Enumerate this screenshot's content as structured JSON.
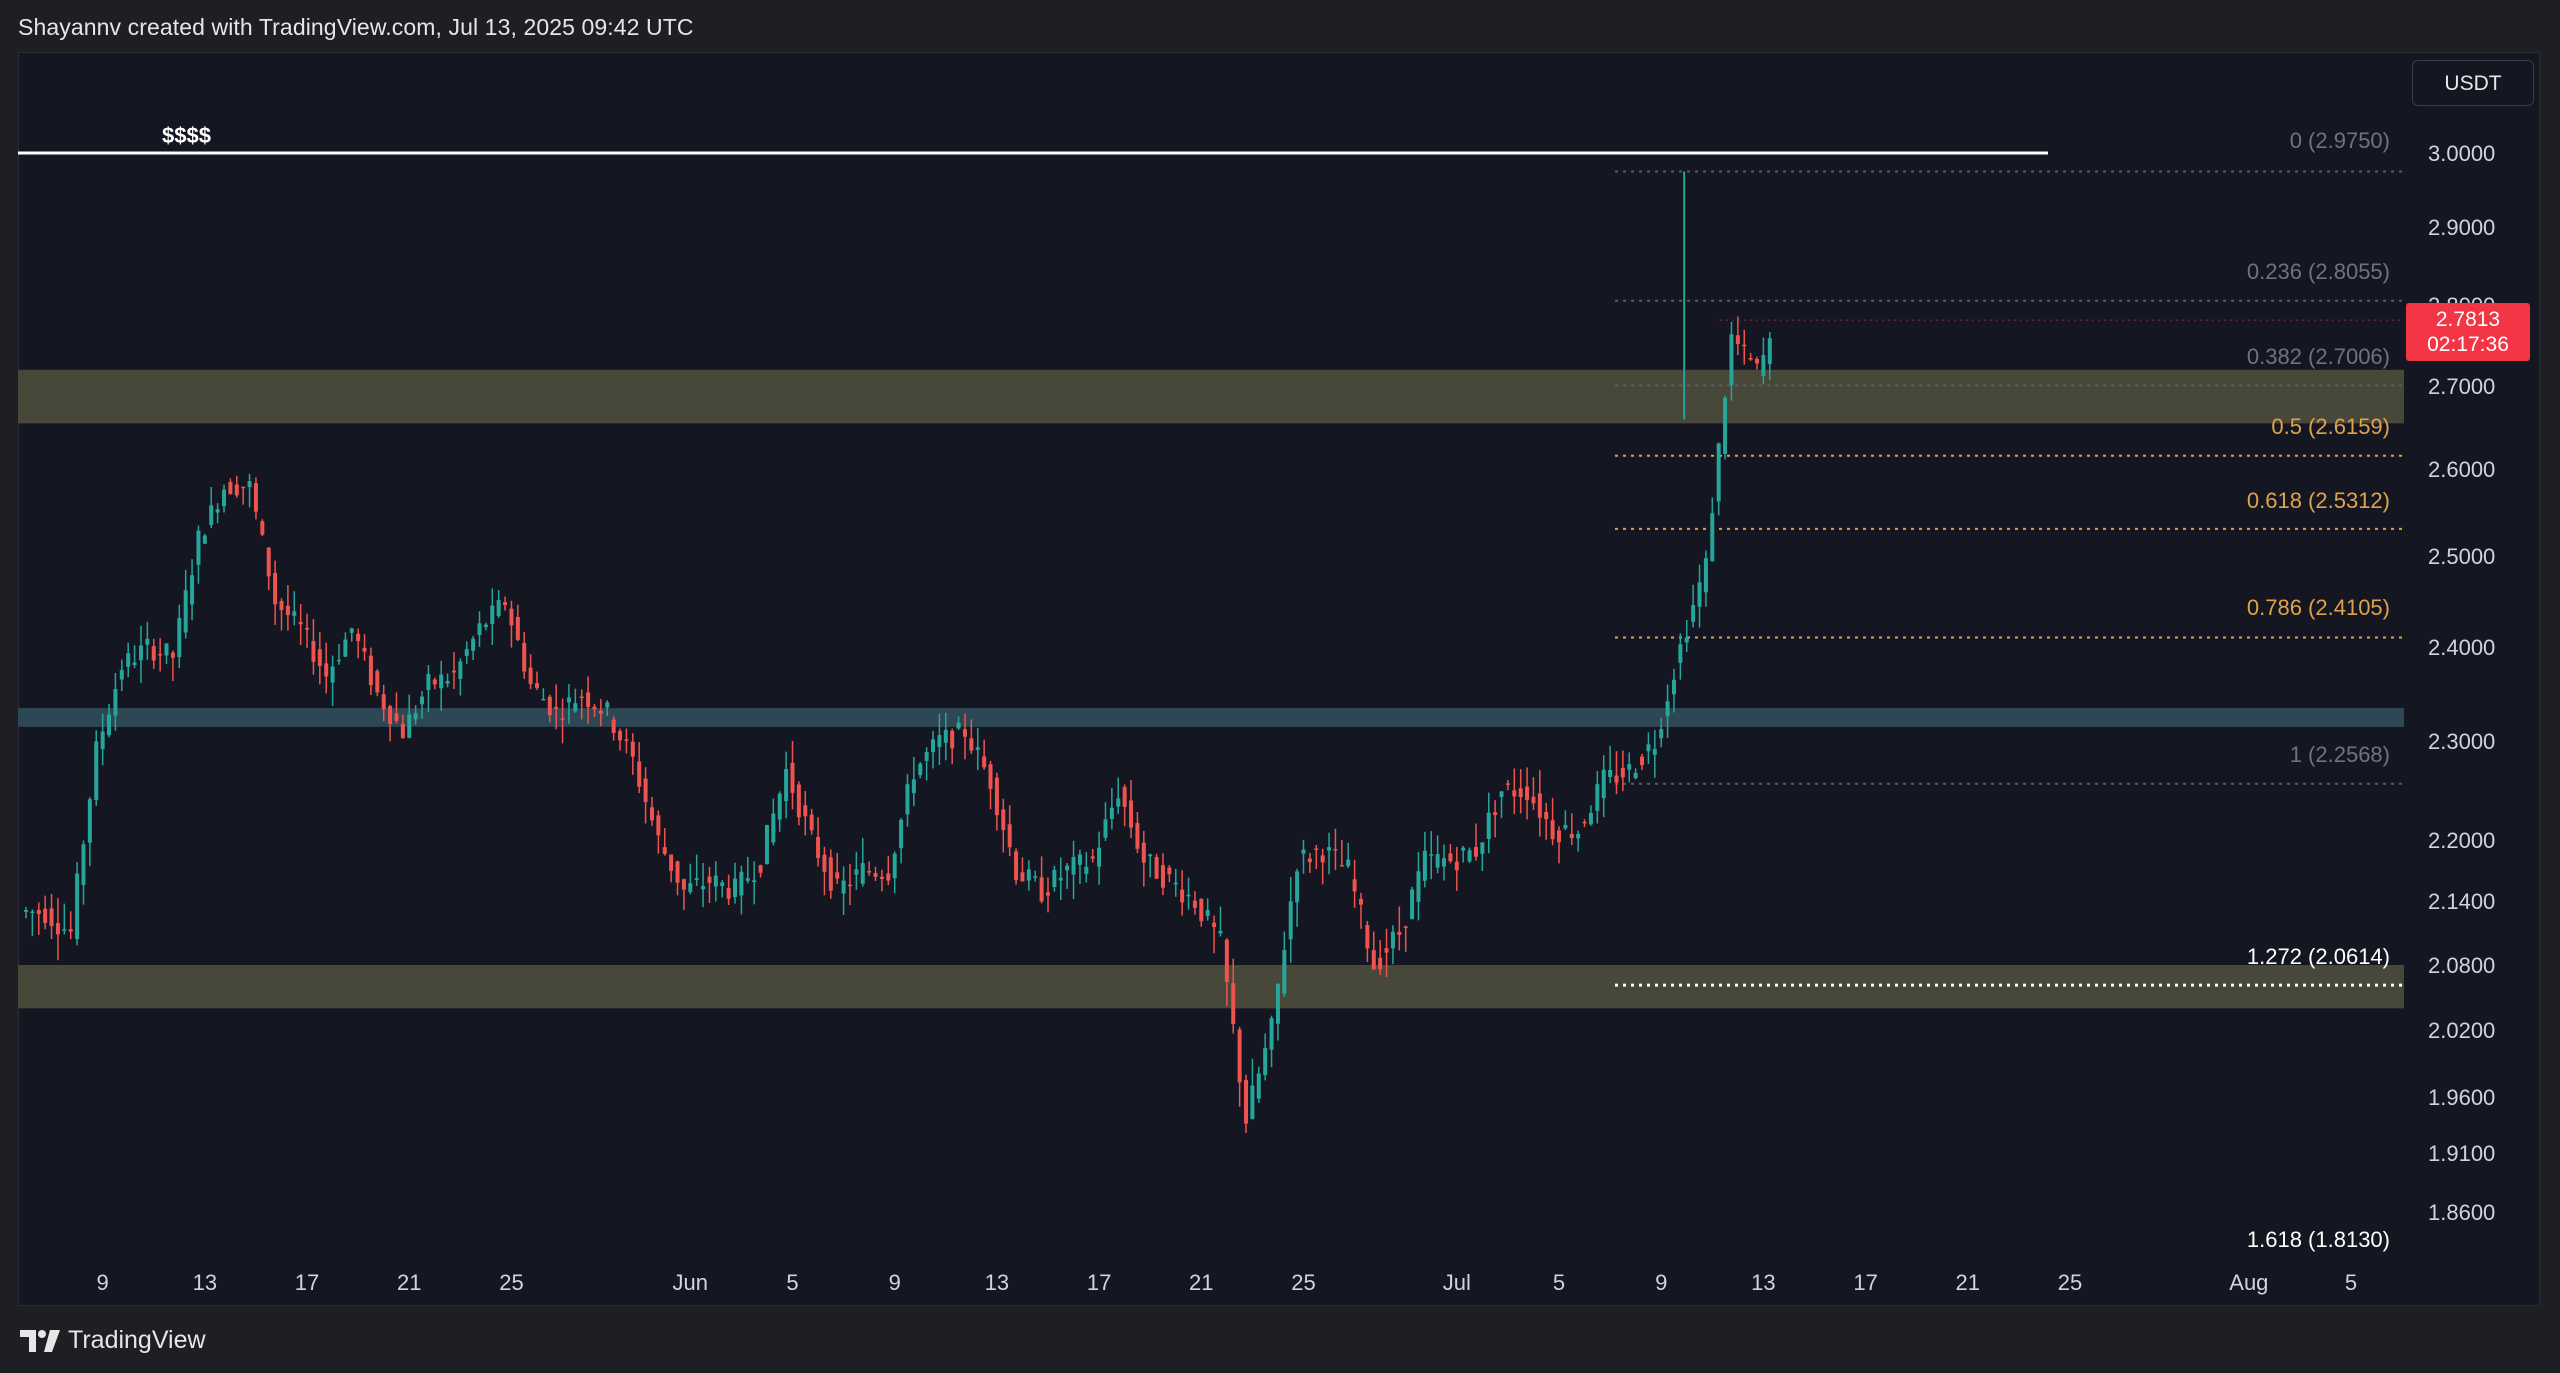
{
  "header": {
    "attribution": "Shayannv created with TradingView.com, Jul 13, 2025 09:42 UTC"
  },
  "footer": {
    "brand": "TradingView",
    "logo_icon": "tradingview-logo-icon"
  },
  "price_scale": {
    "currency": "USDT"
  },
  "last_price": {
    "value": "2.7813",
    "countdown": "02:17:36",
    "color": "#f23645"
  },
  "colors": {
    "up": "#26a69a",
    "down": "#ef5350",
    "background": "#141722",
    "zone_supply": "#4a4a3c",
    "zone_support": "#2e4a58",
    "fib_gray": "#5d6170",
    "fib_orange": "#e0a24a",
    "fib_white": "#ffffff"
  },
  "chart_data": {
    "type": "candlestick",
    "symbol_quote": "USDT",
    "y_ticks": [
      "3.0000",
      "2.9000",
      "2.8000",
      "2.7000",
      "2.6000",
      "2.5000",
      "2.4000",
      "2.3000",
      "2.2000",
      "2.1400",
      "2.0800",
      "2.0200",
      "1.9600",
      "1.9100",
      "1.8600"
    ],
    "x_ticks": [
      "9",
      "13",
      "17",
      "21",
      "25",
      "Jun",
      "5",
      "9",
      "13",
      "17",
      "21",
      "25",
      "Jul",
      "5",
      "9",
      "13",
      "17",
      "21",
      "25",
      "Aug",
      "5"
    ],
    "horizontal_line": {
      "label": "$$$$",
      "price": 3.0,
      "color": "#ffffff"
    },
    "zones": [
      {
        "from": 2.655,
        "to": 2.72,
        "color": "#4a4a3c"
      },
      {
        "from": 2.315,
        "to": 2.335,
        "color": "#2e4a58"
      },
      {
        "from": 2.04,
        "to": 2.08,
        "color": "#4a4a3c"
      }
    ],
    "fibonacci": [
      {
        "label": "0 (2.9750)",
        "ratio": 0,
        "price": 2.975,
        "color": "#5d6170"
      },
      {
        "label": "0.236 (2.8055)",
        "ratio": 0.236,
        "price": 2.8055,
        "color": "#5d6170"
      },
      {
        "label": "0.382 (2.7006)",
        "ratio": 0.382,
        "price": 2.7006,
        "color": "#5d6170"
      },
      {
        "label": "0.5 (2.6159)",
        "ratio": 0.5,
        "price": 2.6159,
        "color": "#e0a24a"
      },
      {
        "label": "0.618 (2.5312)",
        "ratio": 0.618,
        "price": 2.5312,
        "color": "#e0a24a"
      },
      {
        "label": "0.786 (2.4105)",
        "ratio": 0.786,
        "price": 2.4105,
        "color": "#e0a24a"
      },
      {
        "label": "1 (2.2568)",
        "ratio": 1,
        "price": 2.2568,
        "color": "#5d6170"
      },
      {
        "label": "1.272 (2.0614)",
        "ratio": 1.272,
        "price": 2.0614,
        "color": "#ffffff"
      },
      {
        "label": "1.618 (1.8130)",
        "ratio": 1.618,
        "price": 1.813,
        "color": "#ffffff"
      }
    ],
    "candle_path": [
      {
        "date": "May 6",
        "close": 2.13
      },
      {
        "date": "May 7",
        "close": 2.11
      },
      {
        "date": "May 8",
        "close": 2.29
      },
      {
        "date": "May 9",
        "close": 2.38
      },
      {
        "date": "May 10",
        "close": 2.4
      },
      {
        "date": "May 11",
        "close": 2.39
      },
      {
        "date": "May 12",
        "close": 2.52
      },
      {
        "date": "May 13",
        "close": 2.58
      },
      {
        "date": "May 14",
        "close": 2.58
      },
      {
        "date": "May 15",
        "close": 2.45
      },
      {
        "date": "May 16",
        "close": 2.42
      },
      {
        "date": "May 17",
        "close": 2.37
      },
      {
        "date": "May 18",
        "close": 2.42
      },
      {
        "date": "May 19",
        "close": 2.35
      },
      {
        "date": "May 20",
        "close": 2.31
      },
      {
        "date": "May 21",
        "close": 2.36
      },
      {
        "date": "May 22",
        "close": 2.37
      },
      {
        "date": "May 23",
        "close": 2.42
      },
      {
        "date": "May 24",
        "close": 2.45
      },
      {
        "date": "May 25",
        "close": 2.36
      },
      {
        "date": "May 26",
        "close": 2.33
      },
      {
        "date": "May 27",
        "close": 2.35
      },
      {
        "date": "May 28",
        "close": 2.33
      },
      {
        "date": "May 29",
        "close": 2.28
      },
      {
        "date": "May 30",
        "close": 2.2
      },
      {
        "date": "May 31",
        "close": 2.15
      },
      {
        "date": "Jun 1",
        "close": 2.16
      },
      {
        "date": "Jun 2",
        "close": 2.15
      },
      {
        "date": "Jun 3",
        "close": 2.18
      },
      {
        "date": "Jun 4",
        "close": 2.27
      },
      {
        "date": "Jun 5",
        "close": 2.2
      },
      {
        "date": "Jun 6",
        "close": 2.15
      },
      {
        "date": "Jun 7",
        "close": 2.17
      },
      {
        "date": "Jun 8",
        "close": 2.17
      },
      {
        "date": "Jun 9",
        "close": 2.27
      },
      {
        "date": "Jun 10",
        "close": 2.3
      },
      {
        "date": "Jun 11",
        "close": 2.31
      },
      {
        "date": "Jun 12",
        "close": 2.26
      },
      {
        "date": "Jun 13",
        "close": 2.17
      },
      {
        "date": "Jun 14",
        "close": 2.15
      },
      {
        "date": "Jun 15",
        "close": 2.17
      },
      {
        "date": "Jun 16",
        "close": 2.18
      },
      {
        "date": "Jun 17",
        "close": 2.25
      },
      {
        "date": "Jun 18",
        "close": 2.18
      },
      {
        "date": "Jun 19",
        "close": 2.16
      },
      {
        "date": "Jun 20",
        "close": 2.14
      },
      {
        "date": "Jun 21",
        "close": 2.1
      },
      {
        "date": "Jun 22",
        "close": 1.94
      },
      {
        "date": "Jun 23",
        "close": 2.02
      },
      {
        "date": "Jun 24",
        "close": 2.18
      },
      {
        "date": "Jun 25",
        "close": 2.19
      },
      {
        "date": "Jun 26",
        "close": 2.17
      },
      {
        "date": "Jun 27",
        "close": 2.08
      },
      {
        "date": "Jun 28",
        "close": 2.11
      },
      {
        "date": "Jun 29",
        "close": 2.18
      },
      {
        "date": "Jun 30",
        "close": 2.18
      },
      {
        "date": "Jul 1",
        "close": 2.19
      },
      {
        "date": "Jul 2",
        "close": 2.25
      },
      {
        "date": "Jul 3",
        "close": 2.25
      },
      {
        "date": "Jul 4",
        "close": 2.21
      },
      {
        "date": "Jul 5",
        "close": 2.21
      },
      {
        "date": "Jul 6",
        "close": 2.26
      },
      {
        "date": "Jul 7",
        "close": 2.27
      },
      {
        "date": "Jul 8",
        "close": 2.3
      },
      {
        "date": "Jul 9",
        "close": 2.4
      },
      {
        "date": "Jul 10",
        "close": 2.49
      },
      {
        "date": "Jul 11",
        "close": 2.76
      },
      {
        "date": "Jul 12",
        "close": 2.72
      },
      {
        "date": "Jul 13",
        "close": 2.7813
      }
    ]
  }
}
